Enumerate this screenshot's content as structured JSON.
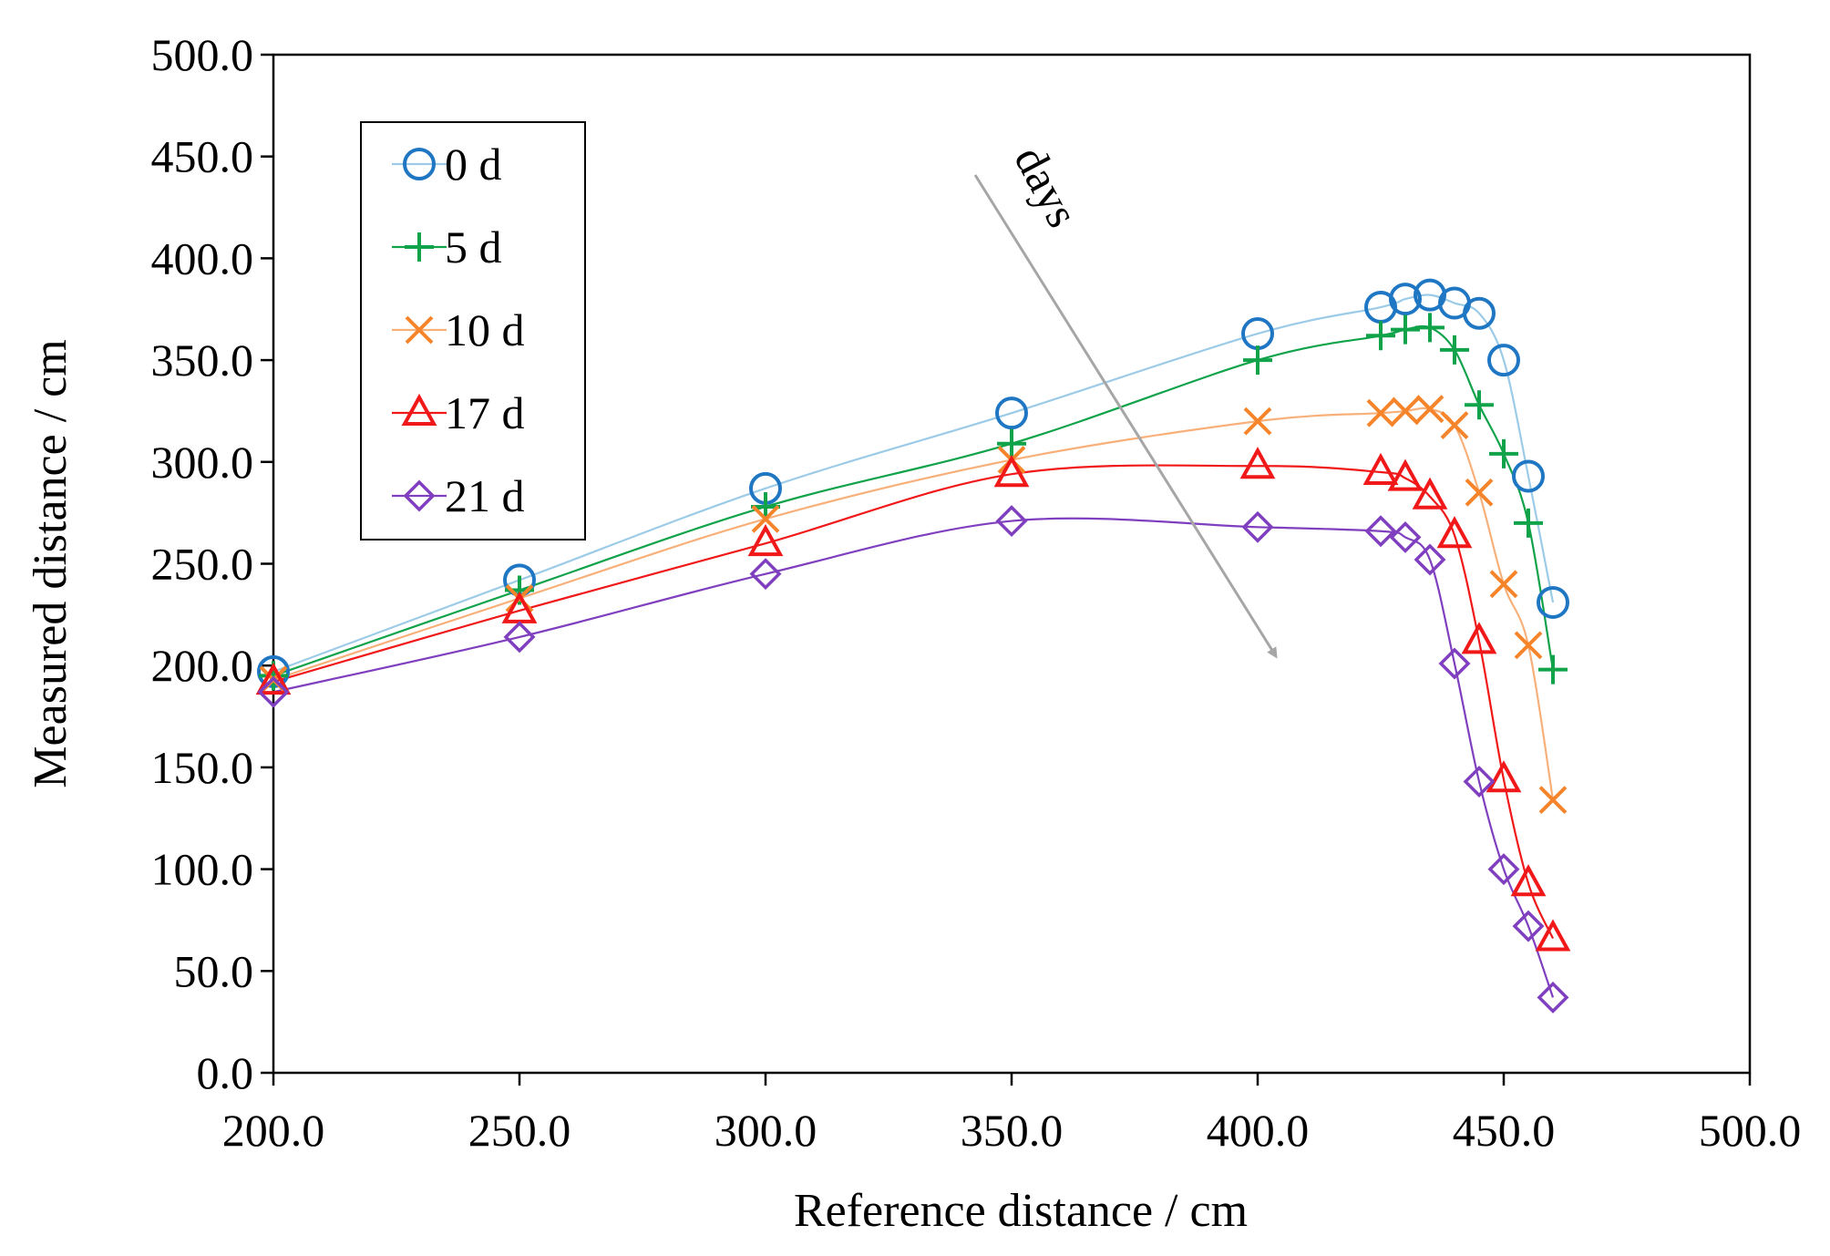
{
  "chart_data": {
    "type": "line",
    "title": "",
    "xlabel": "Reference distance / cm",
    "ylabel": "Measured distance / cm",
    "xlim": [
      200,
      500
    ],
    "ylim": [
      0,
      500
    ],
    "xticks": [
      200,
      250,
      300,
      350,
      400,
      450,
      500
    ],
    "yticks": [
      0,
      50,
      100,
      150,
      200,
      250,
      300,
      350,
      400,
      450,
      500
    ],
    "tick_decimals": 1,
    "grid": false,
    "legend_position": "top-left",
    "series": [
      {
        "name": "0 d",
        "marker": "circle",
        "color": "#1f77c4",
        "line_color": "#9ccbe8",
        "x": [
          200,
          250,
          300,
          350,
          400,
          425,
          430,
          435,
          440,
          445,
          450,
          455,
          460
        ],
        "y": [
          197,
          242,
          287,
          324,
          363,
          376,
          380,
          382,
          378,
          373,
          350,
          293,
          231
        ]
      },
      {
        "name": "5 d",
        "marker": "plus",
        "color": "#10a34a",
        "line_color": "#10a34a",
        "x": [
          200,
          250,
          300,
          350,
          400,
          425,
          430,
          435,
          440,
          445,
          450,
          455,
          460
        ],
        "y": [
          195,
          237,
          278,
          309,
          350,
          362,
          365,
          366,
          355,
          328,
          304,
          270,
          198
        ]
      },
      {
        "name": "10 d",
        "marker": "x",
        "color": "#f5842a",
        "line_color": "#f8b07a",
        "x": [
          200,
          250,
          300,
          350,
          400,
          425,
          430,
          435,
          440,
          445,
          450,
          455,
          460
        ],
        "y": [
          193,
          233,
          272,
          301,
          320,
          324,
          325,
          326,
          318,
          285,
          240,
          210,
          134
        ]
      },
      {
        "name": "17 d",
        "marker": "triangle",
        "color": "#f01818",
        "line_color": "#f01818",
        "x": [
          200,
          250,
          300,
          350,
          400,
          425,
          430,
          435,
          440,
          445,
          450,
          455,
          460
        ],
        "y": [
          192,
          227,
          260,
          294,
          298,
          295,
          292,
          283,
          264,
          212,
          144,
          93,
          66
        ]
      },
      {
        "name": "21 d",
        "marker": "diamond",
        "color": "#7f3fbf",
        "line_color": "#7f3fbf",
        "x": [
          200,
          250,
          300,
          350,
          400,
          425,
          430,
          435,
          440,
          445,
          450,
          455,
          460
        ],
        "y": [
          187,
          214,
          245,
          271,
          268,
          266,
          263,
          252,
          201,
          143,
          100,
          72,
          37
        ]
      }
    ],
    "annotation": {
      "text": "days"
    }
  }
}
